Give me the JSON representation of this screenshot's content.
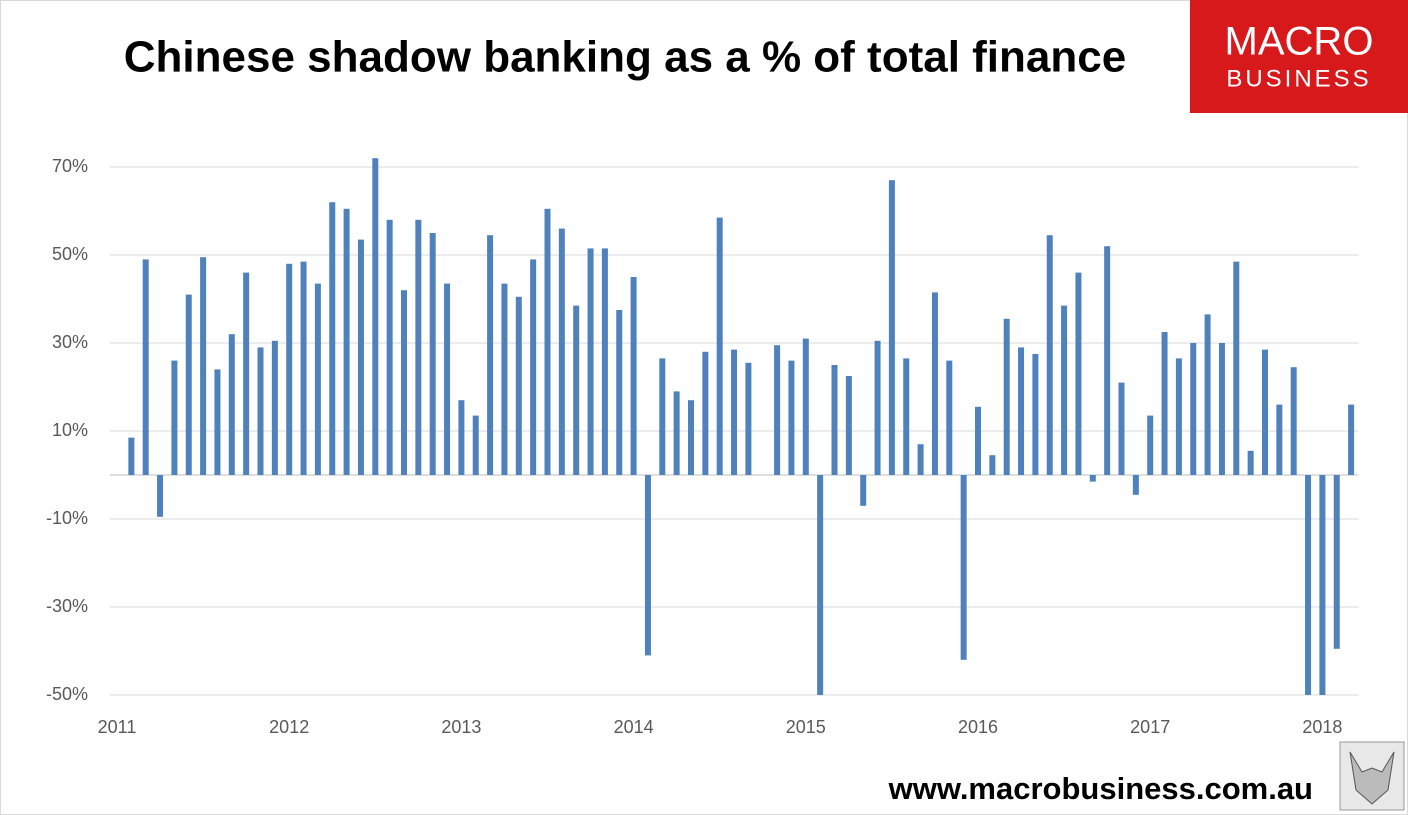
{
  "chart_data": {
    "type": "bar",
    "title": "Chinese shadow banking as a % of total finance",
    "logo": [
      "MACRO",
      "BUSINESS"
    ],
    "footer": "www.macrobusiness.com.au",
    "categories": [
      "2011",
      null,
      null,
      null,
      null,
      null,
      null,
      null,
      null,
      null,
      null,
      null,
      "2012",
      null,
      null,
      null,
      null,
      null,
      null,
      null,
      null,
      null,
      null,
      null,
      "2013",
      null,
      null,
      null,
      null,
      null,
      null,
      null,
      null,
      null,
      null,
      null,
      "2014",
      null,
      null,
      null,
      null,
      null,
      null,
      null,
      null,
      null,
      null,
      null,
      "2015",
      null,
      null,
      null,
      null,
      null,
      null,
      null,
      null,
      null,
      null,
      null,
      "2016",
      null,
      null,
      null,
      null,
      null,
      null,
      null,
      null,
      null,
      null,
      null,
      "2017",
      null,
      null,
      null,
      null,
      null,
      null,
      null,
      null,
      null,
      null,
      null,
      "2018",
      null,
      null
    ],
    "values": [
      null,
      8.5,
      49,
      -9.5,
      26,
      41,
      49.5,
      24,
      32,
      46,
      29,
      30.5,
      48,
      48.5,
      43.5,
      62,
      60.5,
      53.5,
      72,
      58,
      42,
      58,
      55,
      43.5,
      17,
      13.5,
      54.5,
      43.5,
      40.5,
      49,
      60.5,
      56,
      38.5,
      51.5,
      51.5,
      37.5,
      45,
      -41,
      26.5,
      19,
      17,
      28,
      58.5,
      28.5,
      25.5,
      null,
      29.5,
      26,
      31,
      -50,
      25,
      22.5,
      -7,
      30.5,
      67,
      26.5,
      7,
      41.5,
      26,
      -42,
      15.5,
      4.5,
      35.5,
      29,
      27.5,
      54.5,
      38.5,
      46,
      -1.5,
      52,
      21,
      -4.5,
      13.5,
      32.5,
      26.5,
      30,
      36.5,
      30,
      48.5,
      5.5,
      28.5,
      16,
      24.5,
      -50,
      -50,
      -39.5,
      16
    ],
    "color": "#4f81bd",
    "ylim": [
      -50,
      75
    ],
    "yticks": [
      {
        "value": -50,
        "label": "-50%"
      },
      {
        "value": -30,
        "label": "-30%"
      },
      {
        "value": -10,
        "label": "-10%"
      },
      {
        "value": 10,
        "label": "10%"
      },
      {
        "value": 30,
        "label": "30%"
      },
      {
        "value": 50,
        "label": "50%"
      },
      {
        "value": 70,
        "label": "70%"
      }
    ],
    "grid": true
  }
}
